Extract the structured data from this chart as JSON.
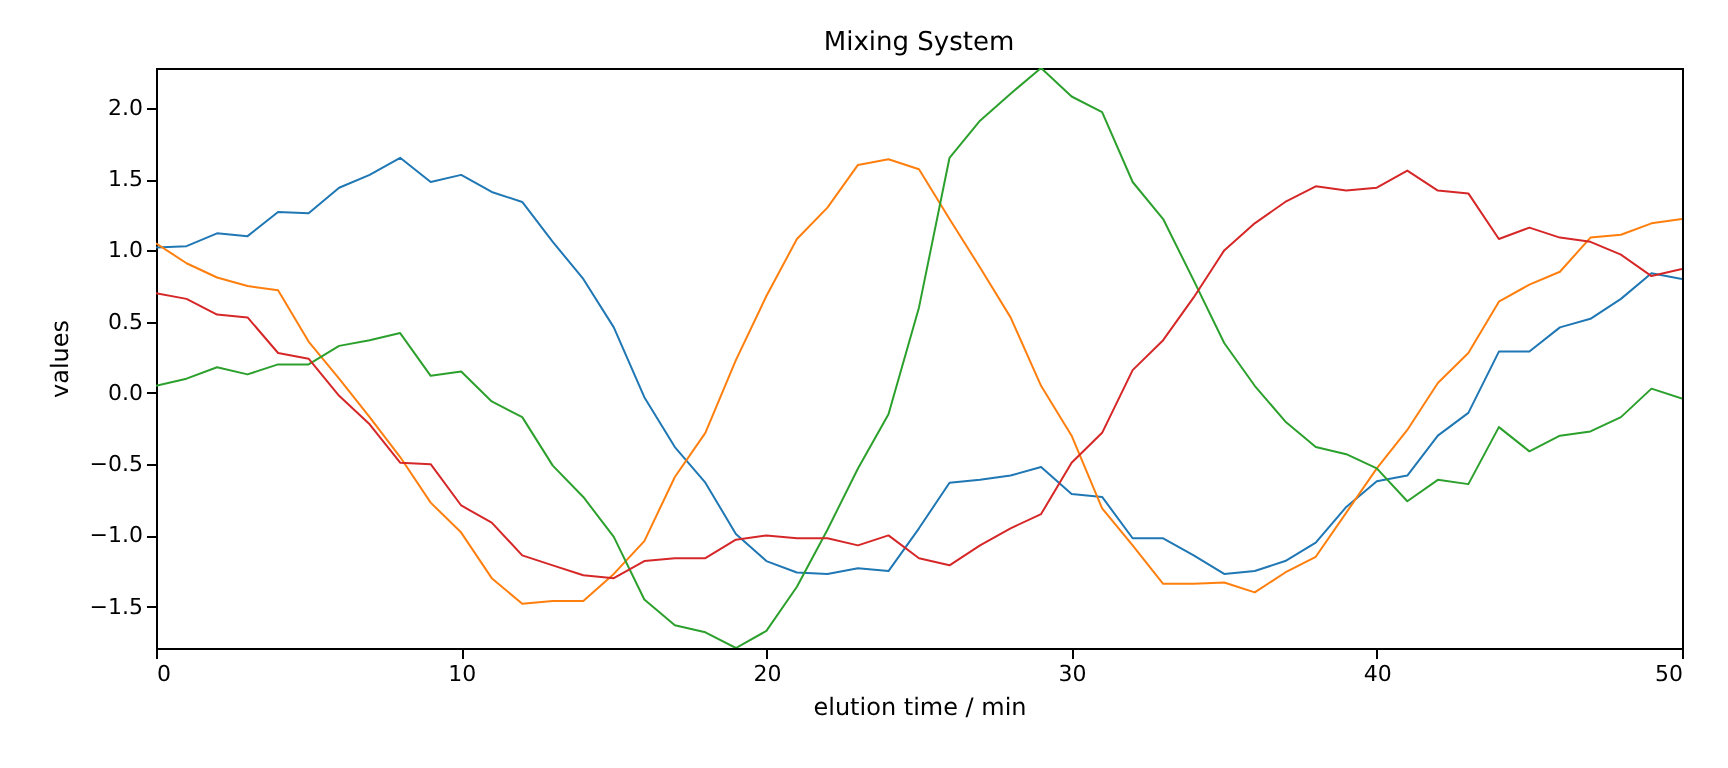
{
  "chart_data": {
    "type": "line",
    "title": "Mixing System",
    "xlabel": "elution time / min",
    "ylabel": "values",
    "x": [
      0,
      1,
      2,
      3,
      4,
      5,
      6,
      7,
      8,
      9,
      10,
      11,
      12,
      13,
      14,
      15,
      16,
      17,
      18,
      19,
      20,
      21,
      22,
      23,
      24,
      25,
      26,
      27,
      28,
      29,
      30,
      31,
      32,
      33,
      34,
      35,
      36,
      37,
      38,
      39,
      40,
      41,
      42,
      43,
      44,
      45,
      46,
      47,
      48,
      49,
      50
    ],
    "series": [
      {
        "color": "#1f77b4",
        "values": [
          1.02,
          1.03,
          1.12,
          1.1,
          1.27,
          1.26,
          1.44,
          1.53,
          1.65,
          1.48,
          1.53,
          1.41,
          1.34,
          1.06,
          0.8,
          0.46,
          -0.03,
          -0.38,
          -0.63,
          -0.99,
          -1.18,
          -1.26,
          -1.27,
          -1.23,
          -1.25,
          -0.95,
          -0.63,
          -0.61,
          -0.58,
          -0.52,
          -0.71,
          -0.73,
          -1.02,
          -1.02,
          -1.14,
          -1.27,
          -1.25,
          -1.18,
          -1.05,
          -0.8,
          -0.62,
          -0.58,
          -0.3,
          -0.14,
          0.29,
          0.29,
          0.46,
          0.52,
          0.66,
          0.84,
          0.8
        ]
      },
      {
        "color": "#ff7f0e",
        "values": [
          1.05,
          0.91,
          0.81,
          0.75,
          0.72,
          0.36,
          0.1,
          -0.17,
          -0.45,
          -0.77,
          -0.98,
          -1.3,
          -1.48,
          -1.46,
          -1.46,
          -1.27,
          -1.04,
          -0.59,
          -0.28,
          0.23,
          0.68,
          1.08,
          1.3,
          1.6,
          1.64,
          1.57,
          1.22,
          0.88,
          0.53,
          0.05,
          -0.3,
          -0.81,
          -1.07,
          -1.34,
          -1.34,
          -1.33,
          -1.4,
          -1.26,
          -1.15,
          -0.84,
          -0.53,
          -0.26,
          0.07,
          0.28,
          0.64,
          0.76,
          0.85,
          1.09,
          1.11,
          1.19,
          1.22
        ]
      },
      {
        "color": "#2ca02c",
        "values": [
          0.05,
          0.1,
          0.18,
          0.13,
          0.2,
          0.2,
          0.33,
          0.37,
          0.42,
          0.12,
          0.15,
          -0.06,
          -0.17,
          -0.51,
          -0.73,
          -1.01,
          -1.45,
          -1.63,
          -1.68,
          -1.79,
          -1.67,
          -1.36,
          -0.96,
          -0.53,
          -0.15,
          0.6,
          1.65,
          1.91,
          2.1,
          2.28,
          2.08,
          1.97,
          1.48,
          1.22,
          0.79,
          0.35,
          0.05,
          -0.2,
          -0.38,
          -0.43,
          -0.53,
          -0.76,
          -0.61,
          -0.64,
          -0.24,
          -0.41,
          -0.3,
          -0.27,
          -0.17,
          0.03,
          -0.04
        ]
      },
      {
        "color": "#d62728",
        "values": [
          0.7,
          0.66,
          0.55,
          0.53,
          0.28,
          0.24,
          -0.02,
          -0.22,
          -0.49,
          -0.5,
          -0.79,
          -0.91,
          -1.14,
          -1.21,
          -1.28,
          -1.3,
          -1.18,
          -1.16,
          -1.16,
          -1.03,
          -1.0,
          -1.02,
          -1.02,
          -1.07,
          -1.0,
          -1.16,
          -1.21,
          -1.07,
          -0.95,
          -0.85,
          -0.49,
          -0.28,
          0.16,
          0.37,
          0.67,
          1.0,
          1.19,
          1.34,
          1.45,
          1.42,
          1.44,
          1.56,
          1.42,
          1.4,
          1.08,
          1.16,
          1.09,
          1.06,
          0.97,
          0.82,
          0.87
        ]
      }
    ],
    "xlim": [
      0,
      50
    ],
    "xticks": [
      0,
      10,
      20,
      30,
      40,
      50
    ],
    "ylim": [
      -1.79,
      2.28
    ],
    "yticks": [
      -1.5,
      {
        "value": -1,
        "label": "−1.0"
      },
      -0.5,
      {
        "value": 0,
        "label": "0.0"
      },
      0.5,
      {
        "value": 1,
        "label": "1.0"
      },
      1.5,
      {
        "value": 2,
        "label": "2.0"
      }
    ],
    "grid": false,
    "legend": false,
    "marker": "none",
    "line_style": "solid"
  }
}
